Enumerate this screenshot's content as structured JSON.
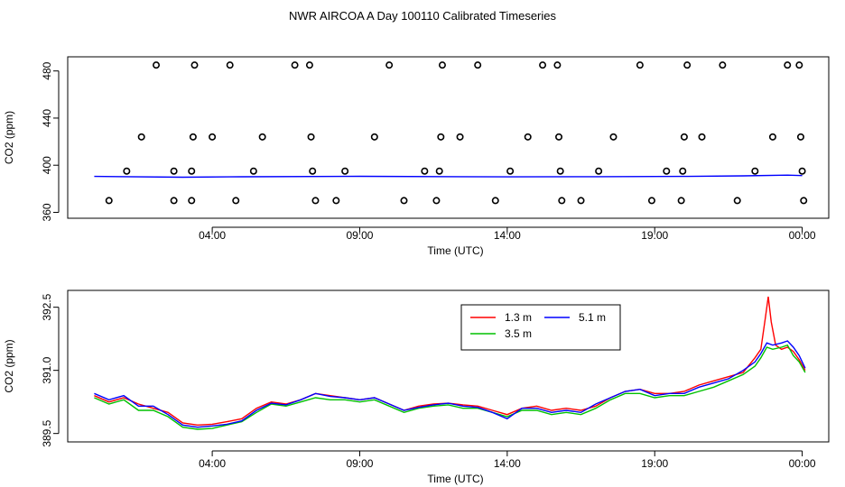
{
  "title": "NWR AIRCOA A  Day 100110  Calibrated Timeseries",
  "chart_data": [
    {
      "type": "scatter",
      "xlabel": "Time (UTC)",
      "ylabel": "CO2 (ppm)",
      "x_ticks": [
        "04:00",
        "09:00",
        "14:00",
        "19:00",
        "00:00"
      ],
      "x_tick_hours": [
        4,
        9,
        14,
        19,
        24
      ],
      "xlim_hours": [
        -0.9,
        24.9
      ],
      "y_ticks": [
        360,
        400,
        440,
        480
      ],
      "ylim": [
        355,
        492
      ],
      "grid": false,
      "legend": "none",
      "series": [
        {
          "color": "#000000",
          "marker": "open-circle",
          "points": [
            [
              0.5,
              370
            ],
            [
              1.1,
              395
            ],
            [
              1.6,
              424
            ],
            [
              2.1,
              485
            ],
            [
              2.7,
              395
            ],
            [
              2.7,
              370
            ],
            [
              3.3,
              395
            ],
            [
              3.3,
              370
            ],
            [
              3.35,
              424
            ],
            [
              3.4,
              485
            ],
            [
              4.0,
              424
            ],
            [
              4.6,
              485
            ],
            [
              4.8,
              370
            ],
            [
              5.4,
              395
            ],
            [
              5.7,
              424
            ],
            [
              6.8,
              485
            ],
            [
              7.3,
              485
            ],
            [
              7.35,
              424
            ],
            [
              7.4,
              395
            ],
            [
              7.5,
              370
            ],
            [
              8.2,
              370
            ],
            [
              8.5,
              395
            ],
            [
              9.5,
              424
            ],
            [
              10.0,
              485
            ],
            [
              10.5,
              370
            ],
            [
              11.2,
              395
            ],
            [
              11.6,
              370
            ],
            [
              11.7,
              395
            ],
            [
              11.75,
              424
            ],
            [
              11.8,
              485
            ],
            [
              12.4,
              424
            ],
            [
              13.0,
              485
            ],
            [
              13.6,
              370
            ],
            [
              14.1,
              395
            ],
            [
              14.7,
              424
            ],
            [
              15.2,
              485
            ],
            [
              15.7,
              485
            ],
            [
              15.75,
              424
            ],
            [
              15.8,
              395
            ],
            [
              15.85,
              370
            ],
            [
              16.5,
              370
            ],
            [
              17.1,
              395
            ],
            [
              17.6,
              424
            ],
            [
              18.5,
              485
            ],
            [
              18.9,
              370
            ],
            [
              19.4,
              395
            ],
            [
              19.9,
              370
            ],
            [
              19.95,
              395
            ],
            [
              20.0,
              424
            ],
            [
              20.1,
              485
            ],
            [
              20.6,
              424
            ],
            [
              21.3,
              485
            ],
            [
              21.8,
              370
            ],
            [
              22.4,
              395
            ],
            [
              23.0,
              424
            ],
            [
              23.5,
              485
            ],
            [
              23.9,
              485
            ],
            [
              23.95,
              424
            ],
            [
              24.0,
              395
            ],
            [
              24.05,
              370
            ]
          ]
        },
        {
          "color": "#0000ff",
          "marker": "line",
          "points": [
            [
              0,
              390.5
            ],
            [
              3,
              389.8
            ],
            [
              5,
              390.2
            ],
            [
              9,
              390.6
            ],
            [
              14,
              390.1
            ],
            [
              17,
              390.3
            ],
            [
              20,
              390.5
            ],
            [
              22,
              391.0
            ],
            [
              23.5,
              391.6
            ],
            [
              24,
              391.2
            ]
          ]
        }
      ]
    },
    {
      "type": "line",
      "xlabel": "Time (UTC)",
      "ylabel": "CO2 (ppm)",
      "x_ticks": [
        "04:00",
        "09:00",
        "14:00",
        "19:00",
        "00:00"
      ],
      "x_tick_hours": [
        4,
        9,
        14,
        19,
        24
      ],
      "xlim_hours": [
        -0.9,
        24.9
      ],
      "y_ticks": [
        389.5,
        391.0,
        392.5
      ],
      "y_tick_labels": [
        "389.5",
        "391.0",
        "392.5"
      ],
      "ylim": [
        389.3,
        392.9
      ],
      "grid": false,
      "legend": "top-center",
      "series": [
        {
          "name": "1.3 m",
          "color": "#ff0000",
          "points": [
            [
              0,
              390.4
            ],
            [
              0.5,
              390.25
            ],
            [
              1,
              390.35
            ],
            [
              1.5,
              390.2
            ],
            [
              2,
              390.1
            ],
            [
              2.5,
              390.0
            ],
            [
              3,
              389.75
            ],
            [
              3.5,
              389.7
            ],
            [
              4,
              389.72
            ],
            [
              4.5,
              389.78
            ],
            [
              5,
              389.85
            ],
            [
              5.5,
              390.1
            ],
            [
              6,
              390.25
            ],
            [
              6.5,
              390.2
            ],
            [
              7,
              390.3
            ],
            [
              7.5,
              390.45
            ],
            [
              8,
              390.4
            ],
            [
              8.5,
              390.35
            ],
            [
              9,
              390.3
            ],
            [
              9.5,
              390.35
            ],
            [
              10,
              390.2
            ],
            [
              10.5,
              390.05
            ],
            [
              11,
              390.15
            ],
            [
              11.5,
              390.2
            ],
            [
              12,
              390.22
            ],
            [
              12.5,
              390.18
            ],
            [
              13,
              390.15
            ],
            [
              13.5,
              390.05
            ],
            [
              14,
              389.95
            ],
            [
              14.5,
              390.1
            ],
            [
              15,
              390.15
            ],
            [
              15.5,
              390.05
            ],
            [
              16,
              390.1
            ],
            [
              16.5,
              390.05
            ],
            [
              17,
              390.15
            ],
            [
              17.5,
              390.35
            ],
            [
              18,
              390.5
            ],
            [
              18.5,
              390.55
            ],
            [
              19,
              390.45
            ],
            [
              19.5,
              390.45
            ],
            [
              20,
              390.5
            ],
            [
              20.5,
              390.65
            ],
            [
              21,
              390.75
            ],
            [
              21.5,
              390.85
            ],
            [
              22,
              390.95
            ],
            [
              22.4,
              391.3
            ],
            [
              22.6,
              391.5
            ],
            [
              22.75,
              392.25
            ],
            [
              22.85,
              392.75
            ],
            [
              22.95,
              392.15
            ],
            [
              23.1,
              391.6
            ],
            [
              23.3,
              391.5
            ],
            [
              23.5,
              391.55
            ],
            [
              23.7,
              391.45
            ],
            [
              23.9,
              391.25
            ],
            [
              24.1,
              391.0
            ]
          ]
        },
        {
          "name": "3.5 m",
          "color": "#00c000",
          "points": [
            [
              0,
              390.35
            ],
            [
              0.5,
              390.2
            ],
            [
              1,
              390.3
            ],
            [
              1.5,
              390.05
            ],
            [
              2,
              390.05
            ],
            [
              2.5,
              389.9
            ],
            [
              3,
              389.65
            ],
            [
              3.5,
              389.6
            ],
            [
              4,
              389.62
            ],
            [
              4.5,
              389.7
            ],
            [
              5,
              389.78
            ],
            [
              5.5,
              390.0
            ],
            [
              6,
              390.2
            ],
            [
              6.5,
              390.15
            ],
            [
              7,
              390.25
            ],
            [
              7.5,
              390.35
            ],
            [
              8,
              390.3
            ],
            [
              8.5,
              390.3
            ],
            [
              9,
              390.25
            ],
            [
              9.5,
              390.3
            ],
            [
              10,
              390.15
            ],
            [
              10.5,
              390.0
            ],
            [
              11,
              390.1
            ],
            [
              11.5,
              390.15
            ],
            [
              12,
              390.18
            ],
            [
              12.5,
              390.1
            ],
            [
              13,
              390.1
            ],
            [
              13.5,
              390.0
            ],
            [
              14,
              389.9
            ],
            [
              14.5,
              390.05
            ],
            [
              15,
              390.05
            ],
            [
              15.5,
              389.95
            ],
            [
              16,
              390.0
            ],
            [
              16.5,
              389.95
            ],
            [
              17,
              390.1
            ],
            [
              17.5,
              390.3
            ],
            [
              18,
              390.45
            ],
            [
              18.5,
              390.45
            ],
            [
              19,
              390.35
            ],
            [
              19.5,
              390.4
            ],
            [
              20,
              390.4
            ],
            [
              20.5,
              390.5
            ],
            [
              21,
              390.6
            ],
            [
              21.5,
              390.75
            ],
            [
              22,
              390.9
            ],
            [
              22.4,
              391.1
            ],
            [
              22.6,
              391.3
            ],
            [
              22.8,
              391.55
            ],
            [
              23.0,
              391.5
            ],
            [
              23.3,
              391.55
            ],
            [
              23.5,
              391.6
            ],
            [
              23.7,
              391.35
            ],
            [
              23.9,
              391.2
            ],
            [
              24.1,
              390.95
            ]
          ]
        },
        {
          "name": "5.1 m",
          "color": "#0000ff",
          "points": [
            [
              0,
              390.45
            ],
            [
              0.5,
              390.3
            ],
            [
              1,
              390.4
            ],
            [
              1.5,
              390.15
            ],
            [
              2,
              390.15
            ],
            [
              2.5,
              389.95
            ],
            [
              3,
              389.7
            ],
            [
              3.5,
              389.65
            ],
            [
              4,
              389.68
            ],
            [
              4.5,
              389.72
            ],
            [
              5,
              389.8
            ],
            [
              5.5,
              390.05
            ],
            [
              6,
              390.22
            ],
            [
              6.5,
              390.18
            ],
            [
              7,
              390.3
            ],
            [
              7.5,
              390.45
            ],
            [
              8,
              390.38
            ],
            [
              8.5,
              390.35
            ],
            [
              9,
              390.3
            ],
            [
              9.5,
              390.35
            ],
            [
              10,
              390.2
            ],
            [
              10.5,
              390.05
            ],
            [
              11,
              390.12
            ],
            [
              11.5,
              390.18
            ],
            [
              12,
              390.22
            ],
            [
              12.5,
              390.15
            ],
            [
              13,
              390.12
            ],
            [
              13.5,
              390.0
            ],
            [
              14,
              389.85
            ],
            [
              14.5,
              390.1
            ],
            [
              15,
              390.1
            ],
            [
              15.5,
              390.0
            ],
            [
              16,
              390.05
            ],
            [
              16.5,
              390.0
            ],
            [
              17,
              390.2
            ],
            [
              17.5,
              390.35
            ],
            [
              18,
              390.5
            ],
            [
              18.5,
              390.55
            ],
            [
              19,
              390.4
            ],
            [
              19.5,
              390.45
            ],
            [
              20,
              390.45
            ],
            [
              20.5,
              390.6
            ],
            [
              21,
              390.7
            ],
            [
              21.5,
              390.8
            ],
            [
              22,
              391.0
            ],
            [
              22.4,
              391.2
            ],
            [
              22.6,
              391.4
            ],
            [
              22.8,
              391.65
            ],
            [
              23.0,
              391.6
            ],
            [
              23.3,
              391.65
            ],
            [
              23.5,
              391.7
            ],
            [
              23.7,
              391.55
            ],
            [
              23.9,
              391.35
            ],
            [
              24.1,
              391.05
            ]
          ]
        }
      ]
    }
  ]
}
